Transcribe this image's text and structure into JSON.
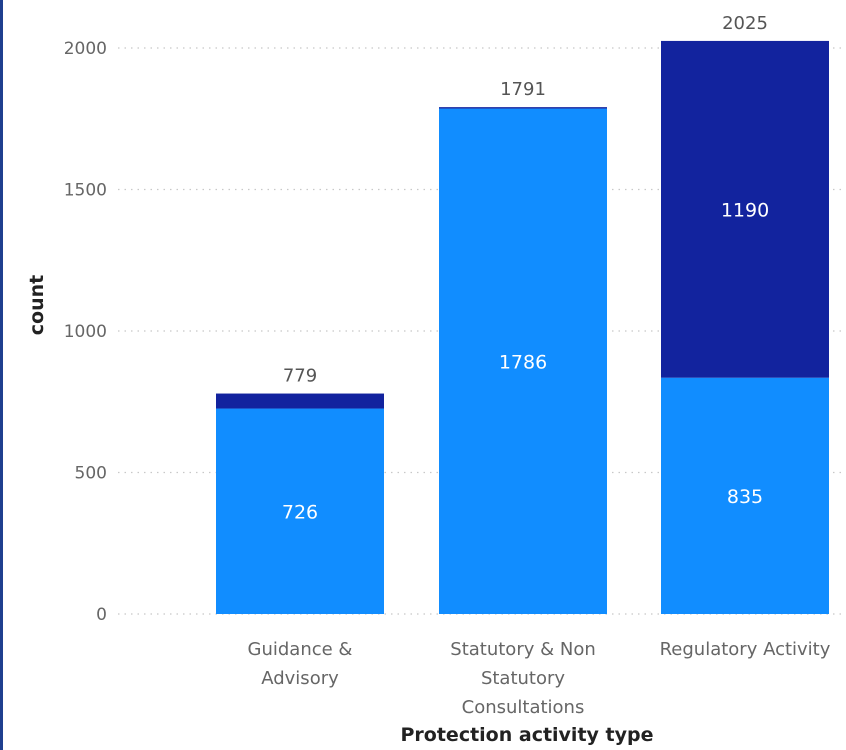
{
  "chart_data": {
    "type": "bar",
    "stacked": true,
    "xlabel": "Protection activity type",
    "ylabel": "count",
    "ylim": [
      0,
      2000
    ],
    "yticks": [
      0,
      500,
      1000,
      1500,
      2000
    ],
    "grid": true,
    "categories": [
      [
        "Guidance &",
        "Advisory"
      ],
      [
        "Statutory & Non",
        "Statutory",
        "Consultations"
      ],
      [
        "Regulatory Activity"
      ]
    ],
    "series": [
      {
        "color": "#118dff",
        "values": [
          726,
          1786,
          835
        ]
      },
      {
        "color": "#12239e",
        "values": [
          53,
          5,
          1190
        ]
      }
    ],
    "totals": [
      779,
      1791,
      2025
    ],
    "segment_labels": [
      [
        726,
        1786,
        835
      ],
      [
        null,
        null,
        1190
      ]
    ]
  }
}
